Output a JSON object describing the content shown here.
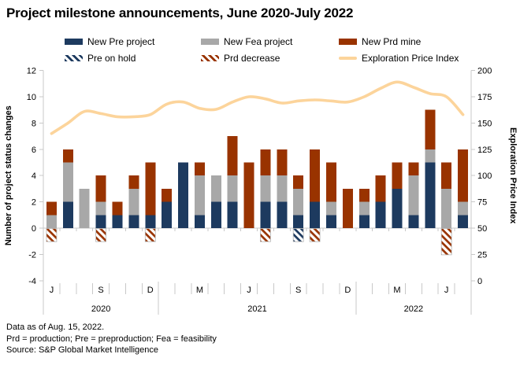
{
  "title": "Project milestone announcements, June 2020-July 2022",
  "colors": {
    "navy": "#1d3a5f",
    "gray": "#a8a8a8",
    "rust": "#993300",
    "line": "#fcd49b",
    "axis": "#c8c8c8",
    "hatch_border": "#b4b4b4"
  },
  "legend": {
    "items": [
      {
        "label": "New Pre project",
        "swatch": "solid-navy"
      },
      {
        "label": "New Fea project",
        "swatch": "solid-gray"
      },
      {
        "label": "New Prd mine",
        "swatch": "solid-rust"
      },
      {
        "label": "Pre on hold",
        "swatch": "hatch-navy"
      },
      {
        "label": "Prd decrease",
        "swatch": "hatch-rust"
      },
      {
        "label": "Exploration Price Index",
        "swatch": "line"
      }
    ]
  },
  "chart_data": {
    "type": "stacked-bar+line",
    "months": [
      "Jun 2020",
      "Jul 2020",
      "Aug 2020",
      "Sep 2020",
      "Oct 2020",
      "Nov 2020",
      "Dec 2020",
      "Jan 2021",
      "Feb 2021",
      "Mar 2021",
      "Apr 2021",
      "May 2021",
      "Jun 2021",
      "Jul 2021",
      "Aug 2021",
      "Sep 2021",
      "Oct 2021",
      "Nov 2021",
      "Dec 2021",
      "Jan 2022",
      "Feb 2022",
      "Mar 2022",
      "Apr 2022",
      "May 2022",
      "Jun 2022",
      "Jul 2022"
    ],
    "month_tick_letters": [
      "J",
      "",
      "",
      "S",
      "",
      "",
      "D",
      "",
      "",
      "M",
      "",
      "",
      "J",
      "",
      "",
      "S",
      "",
      "",
      "D",
      "",
      "",
      "M",
      "",
      "",
      "J",
      ""
    ],
    "year_groups": [
      {
        "label": "2020",
        "from": 0,
        "to": 6
      },
      {
        "label": "2021",
        "from": 7,
        "to": 18
      },
      {
        "label": "2022",
        "from": 19,
        "to": 25
      }
    ],
    "series": [
      {
        "name": "New Pre project",
        "color_key": "navy",
        "values": [
          0,
          2,
          0,
          1,
          1,
          1,
          1,
          2,
          5,
          1,
          2,
          2,
          0,
          2,
          2,
          1,
          2,
          1,
          0,
          1,
          2,
          3,
          1,
          5,
          0,
          1
        ]
      },
      {
        "name": "New Fea project",
        "color_key": "gray",
        "values": [
          1,
          3,
          3,
          1,
          0,
          2,
          0,
          0,
          0,
          3,
          2,
          2,
          0,
          2,
          2,
          2,
          0,
          1,
          0,
          1,
          0,
          0,
          3,
          1,
          3,
          1
        ]
      },
      {
        "name": "New Prd mine",
        "color_key": "rust",
        "values": [
          1,
          1,
          0,
          2,
          1,
          1,
          4,
          1,
          0,
          1,
          0,
          3,
          5,
          2,
          2,
          1,
          4,
          3,
          3,
          1,
          2,
          2,
          1,
          3,
          2,
          4
        ]
      }
    ],
    "negative_series": [
      {
        "name": "Pre on hold",
        "hatch": "hatch-pre",
        "values": [
          0,
          0,
          0,
          0,
          0,
          0,
          0,
          0,
          0,
          0,
          0,
          0,
          0,
          0,
          0,
          -1,
          0,
          0,
          0,
          0,
          0,
          0,
          0,
          0,
          0,
          0
        ]
      },
      {
        "name": "Prd decrease",
        "hatch": "hatch-prd",
        "values": [
          -1,
          0,
          0,
          -1,
          0,
          0,
          -1,
          0,
          0,
          0,
          0,
          0,
          0,
          -1,
          0,
          0,
          -1,
          0,
          0,
          0,
          0,
          0,
          0,
          0,
          -2,
          0
        ]
      }
    ],
    "line": {
      "name": "Exploration Price Index",
      "values": [
        140,
        150,
        161,
        159,
        156,
        156,
        158,
        168,
        170,
        164,
        163,
        170,
        175,
        173,
        169,
        171,
        172,
        171,
        170,
        175,
        183,
        189,
        184,
        178,
        175,
        158
      ]
    },
    "left_axis": {
      "title": "Number of project status changes",
      "min": -4,
      "max": 12,
      "ticks": [
        12,
        10,
        8,
        6,
        4,
        2,
        0,
        -2,
        -4
      ]
    },
    "right_axis": {
      "title": "Exploration Price Index",
      "min": 0,
      "max": 200,
      "ticks": [
        200,
        175,
        150,
        125,
        100,
        75,
        50,
        25,
        0
      ]
    },
    "grid": "off",
    "legend_position": "top"
  },
  "footer": {
    "line1": "Data as of Aug. 15, 2022.",
    "line2": "Prd = production; Pre = preproduction; Fea = feasibility",
    "line3": "Source: S&P Global Market Intelligence"
  }
}
